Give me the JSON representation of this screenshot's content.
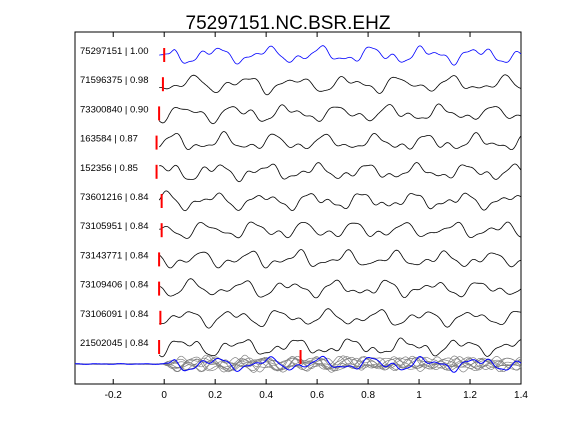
{
  "chart_data": {
    "type": "line",
    "title": "75297151.NC.BSR.EHZ",
    "xlabel": "",
    "ylabel": "",
    "xlim": [
      -0.35,
      1.4
    ],
    "xticks": [
      -0.2,
      0,
      0.2,
      0.4,
      0.6,
      0.8,
      1,
      1.2,
      1.4
    ],
    "xtick_labels": [
      "-0.2",
      "0",
      "0.2",
      "0.4",
      "0.6",
      "0.8",
      "1",
      "1.2",
      "1.4"
    ],
    "grid": false,
    "legend": "none",
    "traces": [
      {
        "label": "75297151 | 1.00",
        "event_id": "75297151",
        "correlation": 1.0,
        "pick_time": 0.0,
        "onset_time": 0.0,
        "color": "#0000ff"
      },
      {
        "label": "71596375 | 0.98",
        "event_id": "71596375",
        "correlation": 0.98,
        "pick_time": -0.005,
        "onset_time": -0.06,
        "color": "#000000"
      },
      {
        "label": "73300840 | 0.90",
        "event_id": "73300840",
        "correlation": 0.9,
        "pick_time": -0.02,
        "onset_time": -0.06,
        "color": "#000000"
      },
      {
        "label": "163584 | 0.87",
        "event_id": "163584",
        "correlation": 0.87,
        "pick_time": -0.03,
        "onset_time": -0.08,
        "color": "#000000"
      },
      {
        "label": "152356 | 0.85",
        "event_id": "152356",
        "correlation": 0.85,
        "pick_time": -0.03,
        "onset_time": -0.08,
        "color": "#000000"
      },
      {
        "label": "73601216 | 0.84",
        "event_id": "73601216",
        "correlation": 0.84,
        "pick_time": -0.01,
        "onset_time": -0.06,
        "color": "#000000"
      },
      {
        "label": "73105951 | 0.84",
        "event_id": "73105951",
        "correlation": 0.84,
        "pick_time": -0.01,
        "onset_time": -0.06,
        "color": "#000000"
      },
      {
        "label": "73143771 | 0.84",
        "event_id": "73143771",
        "correlation": 0.84,
        "pick_time": -0.02,
        "onset_time": -0.06,
        "color": "#000000"
      },
      {
        "label": "73109406 | 0.84",
        "event_id": "73109406",
        "correlation": 0.84,
        "pick_time": -0.02,
        "onset_time": -0.06,
        "color": "#000000"
      },
      {
        "label": "73106091 | 0.84",
        "event_id": "73106091",
        "correlation": 0.84,
        "pick_time": -0.015,
        "onset_time": -0.06,
        "color": "#000000"
      },
      {
        "label": "21502045 | 0.84",
        "event_id": "21502045",
        "correlation": 0.84,
        "pick_time": -0.02,
        "onset_time": -0.06,
        "secondary_pick_time": 0.535,
        "color": "#000000"
      }
    ],
    "stack": {
      "overlay_color": "#808080",
      "reference_color": "#0000ff",
      "onset_time": 0.0
    },
    "pick_color": "#ff0000"
  }
}
